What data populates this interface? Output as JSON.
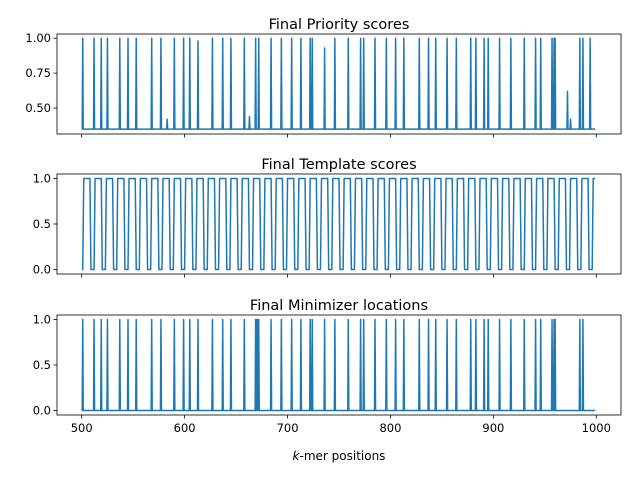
{
  "chart_data": [
    {
      "type": "line",
      "title": "Final Priority scores",
      "xlim": [
        476,
        1024
      ],
      "ylim": [
        0.315,
        1.03
      ],
      "yticks": [
        0.5,
        0.75,
        1.0
      ],
      "ytick_labels": [
        "0.50",
        "0.75",
        "1.00"
      ],
      "xticks": [
        500,
        600,
        700,
        800,
        900,
        1000
      ],
      "xtick_labels": [
        "",
        "",
        "",
        "",
        "",
        ""
      ],
      "color": "#1f77b4",
      "baseline": 0.35,
      "spikes": [
        {
          "x": 501,
          "y": 1.0
        },
        {
          "x": 512,
          "y": 1.0
        },
        {
          "x": 519,
          "y": 1.0
        },
        {
          "x": 525,
          "y": 1.0
        },
        {
          "x": 537,
          "y": 1.0
        },
        {
          "x": 545,
          "y": 1.0
        },
        {
          "x": 553,
          "y": 1.0
        },
        {
          "x": 568,
          "y": 1.0
        },
        {
          "x": 577,
          "y": 1.0
        },
        {
          "x": 583,
          "y": 0.42
        },
        {
          "x": 590,
          "y": 1.0
        },
        {
          "x": 599,
          "y": 1.0
        },
        {
          "x": 605,
          "y": 1.0
        },
        {
          "x": 613,
          "y": 0.98
        },
        {
          "x": 627,
          "y": 1.0
        },
        {
          "x": 637,
          "y": 1.0
        },
        {
          "x": 645,
          "y": 1.0
        },
        {
          "x": 658,
          "y": 1.0
        },
        {
          "x": 663,
          "y": 0.44
        },
        {
          "x": 669,
          "y": 1.0
        },
        {
          "x": 672,
          "y": 1.0
        },
        {
          "x": 684,
          "y": 1.0
        },
        {
          "x": 694,
          "y": 1.0
        },
        {
          "x": 704,
          "y": 1.0
        },
        {
          "x": 713,
          "y": 1.0
        },
        {
          "x": 722,
          "y": 1.0
        },
        {
          "x": 724,
          "y": 1.0
        },
        {
          "x": 736,
          "y": 0.93
        },
        {
          "x": 746,
          "y": 1.0
        },
        {
          "x": 759,
          "y": 1.0
        },
        {
          "x": 771,
          "y": 1.0
        },
        {
          "x": 774,
          "y": 1.0
        },
        {
          "x": 785,
          "y": 1.0
        },
        {
          "x": 796,
          "y": 1.0
        },
        {
          "x": 805,
          "y": 1.0
        },
        {
          "x": 813,
          "y": 1.0
        },
        {
          "x": 828,
          "y": 1.0
        },
        {
          "x": 837,
          "y": 1.0
        },
        {
          "x": 844,
          "y": 1.0
        },
        {
          "x": 855,
          "y": 1.0
        },
        {
          "x": 864,
          "y": 1.0
        },
        {
          "x": 878,
          "y": 1.0
        },
        {
          "x": 883,
          "y": 1.0
        },
        {
          "x": 891,
          "y": 1.0
        },
        {
          "x": 895,
          "y": 1.0
        },
        {
          "x": 906,
          "y": 1.0
        },
        {
          "x": 917,
          "y": 1.0
        },
        {
          "x": 930,
          "y": 1.0
        },
        {
          "x": 941,
          "y": 1.0
        },
        {
          "x": 946,
          "y": 1.0
        },
        {
          "x": 957,
          "y": 1.0
        },
        {
          "x": 959,
          "y": 1.0
        },
        {
          "x": 960,
          "y": 1.0
        },
        {
          "x": 972,
          "y": 0.62
        },
        {
          "x": 975,
          "y": 0.42
        },
        {
          "x": 984,
          "y": 1.0
        },
        {
          "x": 987,
          "y": 1.0
        },
        {
          "x": 994,
          "y": 1.0
        }
      ]
    },
    {
      "type": "line",
      "title": "Final Template scores",
      "xlim": [
        476,
        1024
      ],
      "ylim": [
        -0.05,
        1.05
      ],
      "yticks": [
        0.0,
        0.5,
        1.0
      ],
      "ytick_labels": [
        "0.0",
        "0.5",
        "1.0"
      ],
      "xticks": [
        500,
        600,
        700,
        800,
        900,
        1000
      ],
      "xtick_labels": [
        "",
        "",
        "",
        "",
        "",
        ""
      ],
      "color": "#1f77b4",
      "square_wave": {
        "start": 500,
        "end": 999,
        "period": 11,
        "high_length": 7,
        "first_high_start": 502,
        "low": 0.0,
        "high": 1.0
      }
    },
    {
      "type": "line",
      "title": "Final Minimizer locations",
      "xlim": [
        476,
        1024
      ],
      "ylim": [
        -0.05,
        1.05
      ],
      "yticks": [
        0.0,
        0.5,
        1.0
      ],
      "ytick_labels": [
        "0.0",
        "0.5",
        "1.0"
      ],
      "xticks": [
        500,
        600,
        700,
        800,
        900,
        1000
      ],
      "xtick_labels": [
        "500",
        "600",
        "700",
        "800",
        "900",
        "1000"
      ],
      "xlabel": "k-mer positions",
      "color": "#1f77b4",
      "baseline": 0.0,
      "spikes": [
        {
          "x": 501,
          "y": 1.0
        },
        {
          "x": 512,
          "y": 1.0
        },
        {
          "x": 519,
          "y": 1.0
        },
        {
          "x": 525,
          "y": 1.0
        },
        {
          "x": 537,
          "y": 1.0
        },
        {
          "x": 545,
          "y": 1.0
        },
        {
          "x": 553,
          "y": 1.0
        },
        {
          "x": 568,
          "y": 1.0
        },
        {
          "x": 577,
          "y": 1.0
        },
        {
          "x": 590,
          "y": 1.0
        },
        {
          "x": 599,
          "y": 1.0
        },
        {
          "x": 605,
          "y": 1.0
        },
        {
          "x": 613,
          "y": 1.0
        },
        {
          "x": 627,
          "y": 1.0
        },
        {
          "x": 637,
          "y": 1.0
        },
        {
          "x": 645,
          "y": 1.0
        },
        {
          "x": 658,
          "y": 1.0
        },
        {
          "x": 669,
          "y": 1.0
        },
        {
          "x": 670,
          "y": 1.0
        },
        {
          "x": 671,
          "y": 1.0
        },
        {
          "x": 672,
          "y": 1.0
        },
        {
          "x": 684,
          "y": 1.0
        },
        {
          "x": 694,
          "y": 1.0
        },
        {
          "x": 704,
          "y": 1.0
        },
        {
          "x": 713,
          "y": 1.0
        },
        {
          "x": 722,
          "y": 1.0
        },
        {
          "x": 724,
          "y": 1.0
        },
        {
          "x": 736,
          "y": 1.0
        },
        {
          "x": 746,
          "y": 1.0
        },
        {
          "x": 759,
          "y": 1.0
        },
        {
          "x": 771,
          "y": 1.0
        },
        {
          "x": 774,
          "y": 1.0
        },
        {
          "x": 785,
          "y": 1.0
        },
        {
          "x": 796,
          "y": 1.0
        },
        {
          "x": 805,
          "y": 1.0
        },
        {
          "x": 813,
          "y": 1.0
        },
        {
          "x": 828,
          "y": 1.0
        },
        {
          "x": 837,
          "y": 1.0
        },
        {
          "x": 844,
          "y": 1.0
        },
        {
          "x": 855,
          "y": 1.0
        },
        {
          "x": 864,
          "y": 1.0
        },
        {
          "x": 878,
          "y": 1.0
        },
        {
          "x": 883,
          "y": 1.0
        },
        {
          "x": 891,
          "y": 1.0
        },
        {
          "x": 895,
          "y": 1.0
        },
        {
          "x": 906,
          "y": 1.0
        },
        {
          "x": 917,
          "y": 1.0
        },
        {
          "x": 930,
          "y": 1.0
        },
        {
          "x": 941,
          "y": 1.0
        },
        {
          "x": 946,
          "y": 1.0
        },
        {
          "x": 957,
          "y": 1.0
        },
        {
          "x": 959,
          "y": 1.0
        },
        {
          "x": 960,
          "y": 1.0
        },
        {
          "x": 984,
          "y": 1.0
        },
        {
          "x": 987,
          "y": 1.0
        }
      ]
    }
  ]
}
